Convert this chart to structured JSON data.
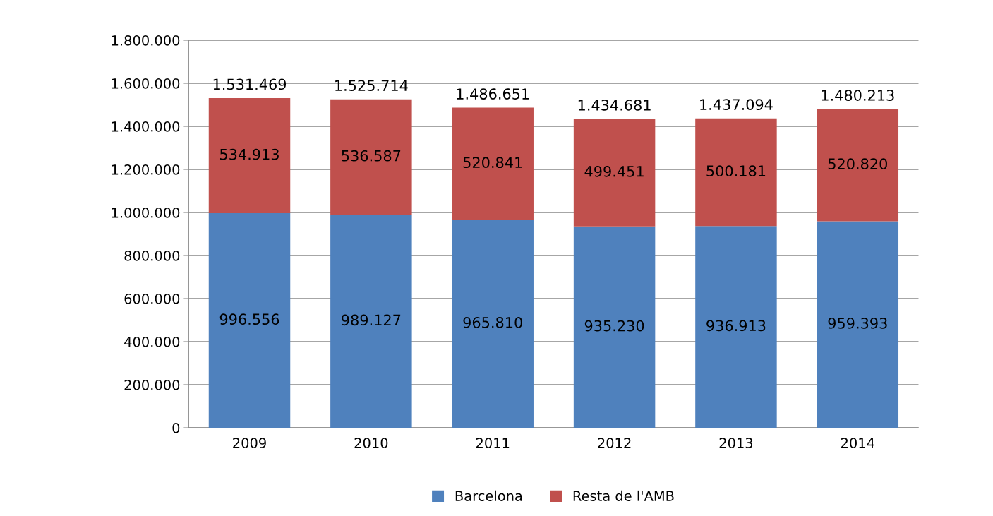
{
  "chart_data": {
    "type": "bar",
    "stacked": true,
    "categories": [
      "2009",
      "2010",
      "2011",
      "2012",
      "2013",
      "2014"
    ],
    "series": [
      {
        "name": "Barcelona",
        "color": "#4f81bd",
        "values": [
          996556,
          989127,
          965810,
          935230,
          936913,
          959393
        ],
        "value_labels": [
          "996.556",
          "989.127",
          "965.810",
          "935.230",
          "936.913",
          "959.393"
        ]
      },
      {
        "name": "Resta de l'AMB",
        "color": "#c0504d",
        "values": [
          534913,
          536587,
          520841,
          499451,
          500181,
          520820
        ],
        "value_labels": [
          "534.913",
          "536.587",
          "520.841",
          "499.451",
          "500.181",
          "520.820"
        ]
      }
    ],
    "totals": [
      "1.531.469",
      "1.525.714",
      "1.486.651",
      "1.434.681",
      "1.437.094",
      "1.480.213"
    ],
    "ylim": [
      0,
      1800000
    ],
    "yticks": [
      0,
      {
        "value": 200000,
        "label": "200.000"
      },
      {
        "value": 400000,
        "label": "400.000"
      },
      {
        "value": 600000,
        "label": "600.000"
      },
      {
        "value": 800000,
        "label": "800.000"
      },
      {
        "value": 1000000,
        "label": "1.000.000"
      },
      {
        "value": 1200000,
        "label": "1.200.000"
      },
      {
        "value": 1400000,
        "label": "1.400.000"
      },
      {
        "value": 1600000,
        "label": "1.600.000"
      },
      {
        "value": 1800000,
        "label": "1.800.000"
      }
    ],
    "grid": "y",
    "legend": "bottom"
  }
}
